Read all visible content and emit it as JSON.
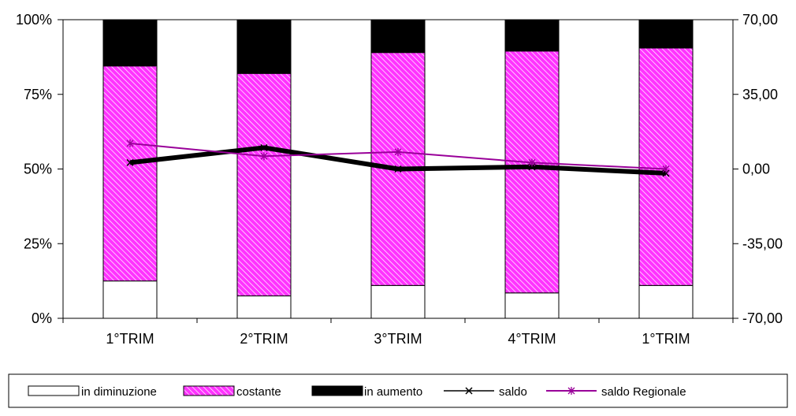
{
  "chart_data": {
    "type": "bar",
    "stacked": "percent",
    "categories": [
      "1°TRIM",
      "2°TRIM",
      "3°TRIM",
      "4°TRIM",
      "1°TRIM"
    ],
    "y_left_ticks": [
      "0%",
      "25%",
      "50%",
      "75%",
      "100%"
    ],
    "y_left_range": [
      0,
      100
    ],
    "y_right_ticks": [
      "-70,00",
      "-35,00",
      "0,00",
      "35,00",
      "70,00"
    ],
    "y_right_range": [
      -70,
      70
    ],
    "grid": false,
    "legend_position": "bottom",
    "bar_series": [
      {
        "name": "in diminuzione",
        "color": "#ffffff",
        "pattern": "none",
        "values": [
          12.5,
          7.5,
          11,
          8.5,
          11
        ]
      },
      {
        "name": "costante",
        "color": "#ff33ff",
        "pattern": "diagonal-hatch",
        "values": [
          72,
          74.5,
          78,
          81,
          79.5
        ]
      },
      {
        "name": "in aumento",
        "color": "#000000",
        "pattern": "none",
        "values": [
          15.5,
          18,
          11,
          10.5,
          9.5
        ]
      }
    ],
    "line_series": [
      {
        "name": "saldo",
        "axis": "right",
        "color": "#000000",
        "marker": "x",
        "values": [
          3,
          10,
          0,
          1,
          -2
        ]
      },
      {
        "name": "saldo Regionale",
        "axis": "right",
        "color": "#990099",
        "marker": "asterisk",
        "values": [
          12,
          6,
          8,
          3,
          0
        ]
      }
    ]
  }
}
